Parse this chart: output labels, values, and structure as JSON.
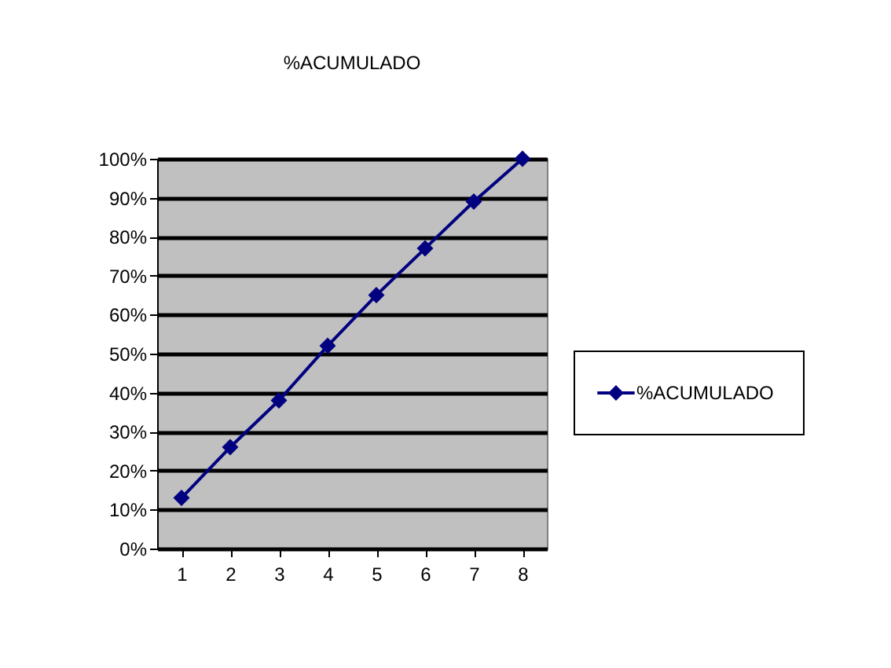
{
  "chart_data": {
    "type": "line",
    "title": "%ACUMULADO",
    "categories": [
      "1",
      "2",
      "3",
      "4",
      "5",
      "6",
      "7",
      "8"
    ],
    "series": [
      {
        "name": "%ACUMULADO",
        "color": "#000080",
        "values": [
          13,
          26,
          38,
          52,
          65,
          77,
          89,
          100
        ]
      }
    ],
    "ylim": [
      0,
      100
    ],
    "yticks": [
      {
        "value": 0,
        "label": "0%"
      },
      {
        "value": 10,
        "label": "10%"
      },
      {
        "value": 20,
        "label": "20%"
      },
      {
        "value": 30,
        "label": "30%"
      },
      {
        "value": 40,
        "label": "40%"
      },
      {
        "value": 50,
        "label": "50%"
      },
      {
        "value": 60,
        "label": "60%"
      },
      {
        "value": 70,
        "label": "70%"
      },
      {
        "value": 80,
        "label": "80%"
      },
      {
        "value": 90,
        "label": "90%"
      },
      {
        "value": 100,
        "label": "100%"
      }
    ],
    "grid": "y",
    "legend": "right",
    "marker": "diamond",
    "line_style": "solid"
  }
}
